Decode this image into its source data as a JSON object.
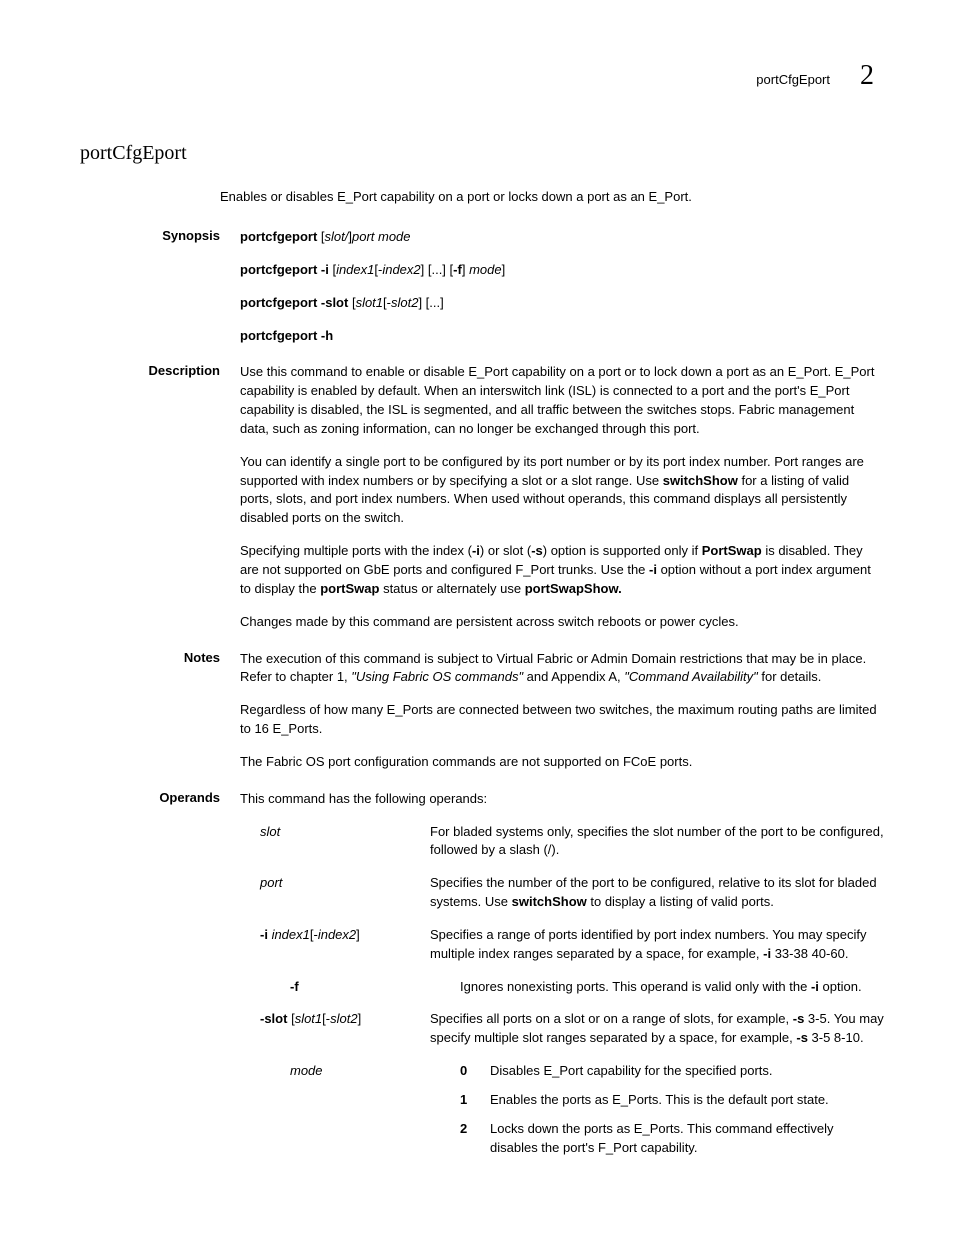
{
  "header": {
    "label": "portCfgEport",
    "chapter": "2"
  },
  "title": "portCfgEport",
  "intro": "Enables or disables E_Port capability on a port or locks down a port as an E_Port.",
  "synopsis": {
    "label": "Synopsis",
    "lines": [
      {
        "parts": [
          {
            "t": "portcfgeport ",
            "b": true
          },
          {
            "t": "[",
            "b": false
          },
          {
            "t": "slot/",
            "i": true
          },
          {
            "t": "]",
            "b": false
          },
          {
            "t": "port mode",
            "i": true
          }
        ]
      },
      {
        "parts": [
          {
            "t": "portcfgeport -i ",
            "b": true
          },
          {
            "t": "[",
            "b": false
          },
          {
            "t": "index1",
            "i": true
          },
          {
            "t": "[-",
            "b": false
          },
          {
            "t": "index2",
            "i": true
          },
          {
            "t": "] [...] [",
            "b": false
          },
          {
            "t": "-f",
            "b": true
          },
          {
            "t": "] ",
            "b": false
          },
          {
            "t": "mode",
            "i": true
          },
          {
            "t": "]",
            "b": false
          }
        ]
      },
      {
        "parts": [
          {
            "t": "portcfgeport -slot ",
            "b": true
          },
          {
            "t": "[",
            "b": false
          },
          {
            "t": "slot1",
            "i": true
          },
          {
            "t": "[-",
            "b": false
          },
          {
            "t": "slot2",
            "i": true
          },
          {
            "t": "] [...]",
            "b": false
          }
        ]
      },
      {
        "parts": [
          {
            "t": "portcfgeport -h",
            "b": true
          }
        ]
      }
    ]
  },
  "description": {
    "label": "Description",
    "paras": [
      [
        {
          "t": "Use this command to enable or disable E_Port capability on a port or to lock down a port as an E_Port. E_Port capability is enabled by default. When an interswitch link (ISL) is connected to a port and the port's E_Port capability is disabled, the ISL is segmented, and all traffic between the switches stops. Fabric management data, such as zoning information, can no longer be exchanged through this port."
        }
      ],
      [
        {
          "t": "You can identify a single port to be configured by its port number or by its port index number. Port ranges are supported with index numbers or by specifying a slot or a slot range. Use "
        },
        {
          "t": "switchShow",
          "b": true
        },
        {
          "t": " for a listing of valid ports, slots, and port index numbers. When used without operands, this command displays all persistently disabled ports on the switch."
        }
      ],
      [
        {
          "t": "Specifying multiple ports with the index ("
        },
        {
          "t": "-i",
          "b": true
        },
        {
          "t": ") or slot ("
        },
        {
          "t": "-s",
          "b": true
        },
        {
          "t": ") option is supported only if "
        },
        {
          "t": "PortSwap",
          "b": true
        },
        {
          "t": " is disabled. They are not supported on GbE ports and configured F_Port trunks. Use the "
        },
        {
          "t": "-i",
          "b": true
        },
        {
          "t": " option without a port index argument to display the "
        },
        {
          "t": "portSwap",
          "b": true
        },
        {
          "t": " status or alternately use "
        },
        {
          "t": "portSwapShow.",
          "b": true
        }
      ],
      [
        {
          "t": "Changes made by this command are persistent across switch reboots or power cycles."
        }
      ]
    ]
  },
  "notes": {
    "label": "Notes",
    "paras": [
      [
        {
          "t": "The execution of this command is subject to Virtual Fabric or Admin Domain restrictions that may be in place. Refer to chapter 1, "
        },
        {
          "t": "\"Using Fabric OS commands\"",
          "i": true
        },
        {
          "t": " and Appendix A, "
        },
        {
          "t": "\"Command Availability\"",
          "i": true
        },
        {
          "t": " for details."
        }
      ],
      [
        {
          "t": "Regardless of how many E_Ports are connected between two switches, the maximum routing paths are limited to 16 E_Ports."
        }
      ],
      [
        {
          "t": "The Fabric OS port configuration commands are not supported on FCoE ports."
        }
      ]
    ]
  },
  "operands": {
    "label": "Operands",
    "intro": "This command has the following operands:",
    "rows": [
      {
        "term": [
          {
            "t": "slot",
            "i": true
          }
        ],
        "def": [
          {
            "t": "For bladed systems only, specifies the slot number of the port to be configured, followed by a slash (/)."
          }
        ]
      },
      {
        "term": [
          {
            "t": "port",
            "i": true
          }
        ],
        "def": [
          {
            "t": "Specifies the number of the port to be configured, relative to its slot for bladed systems. Use "
          },
          {
            "t": "switchShow",
            "b": true
          },
          {
            "t": " to display a listing of valid ports."
          }
        ]
      },
      {
        "term": [
          {
            "t": "-i ",
            "b": true
          },
          {
            "t": "index1",
            "i": true
          },
          {
            "t": "[-"
          },
          {
            "t": "index2",
            "i": true
          },
          {
            "t": "]"
          }
        ],
        "def": [
          {
            "t": "Specifies a range of ports identified by port index numbers. You may specify multiple index ranges separated by a space, for example, "
          },
          {
            "t": "-i",
            "b": true
          },
          {
            "t": " 33-38 40-60."
          }
        ]
      },
      {
        "term": [
          {
            "t": "-f",
            "b": true
          }
        ],
        "indent": true,
        "def": [
          {
            "t": "Ignores nonexisting ports. This operand is valid only with the "
          },
          {
            "t": "-i",
            "b": true
          },
          {
            "t": " option."
          }
        ]
      },
      {
        "term": [
          {
            "t": "-slot ",
            "b": true
          },
          {
            "t": "["
          },
          {
            "t": "slot1",
            "i": true
          },
          {
            "t": "[-"
          },
          {
            "t": "slot2",
            "i": true
          },
          {
            "t": "]"
          }
        ],
        "def": [
          {
            "t": "Specifies all ports on a slot or on a range of slots, for example, "
          },
          {
            "t": "-s",
            "b": true
          },
          {
            "t": " 3-5. You may specify multiple slot ranges separated by a space, for example, "
          },
          {
            "t": "-s",
            "b": true
          },
          {
            "t": " 3-5 8-10."
          }
        ]
      },
      {
        "term": [
          {
            "t": "mode",
            "i": true
          }
        ],
        "indent": true,
        "modes": [
          {
            "n": "0",
            "text": "Disables E_Port capability for the specified ports."
          },
          {
            "n": "1",
            "text": "Enables the ports as E_Ports. This is the default port state."
          },
          {
            "n": "2",
            "text": "Locks down the ports as E_Ports. This command effectively disables the port's F_Port capability."
          }
        ]
      }
    ]
  }
}
